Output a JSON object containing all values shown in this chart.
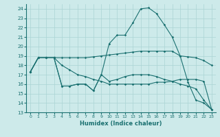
{
  "xlabel": "Humidex (Indice chaleur)",
  "bg_color": "#cdeaea",
  "grid_color": "#aad4d4",
  "line_color": "#1a7070",
  "xlim": [
    -0.5,
    23.5
  ],
  "ylim": [
    13,
    24.5
  ],
  "yticks": [
    13,
    14,
    15,
    16,
    17,
    18,
    19,
    20,
    21,
    22,
    23,
    24
  ],
  "xticks": [
    0,
    1,
    2,
    3,
    4,
    5,
    6,
    7,
    8,
    9,
    10,
    11,
    12,
    13,
    14,
    15,
    16,
    17,
    18,
    19,
    20,
    21,
    22,
    23
  ],
  "line1_x": [
    0,
    1,
    2,
    3,
    4,
    5,
    6,
    7,
    8,
    9,
    10,
    11,
    12,
    13,
    14,
    15,
    16,
    17,
    18,
    19,
    20,
    21,
    22,
    23
  ],
  "line1_y": [
    17.3,
    18.8,
    18.8,
    18.8,
    18.8,
    18.8,
    18.8,
    18.8,
    18.9,
    19.0,
    19.1,
    19.2,
    19.3,
    19.4,
    19.5,
    19.5,
    19.5,
    19.5,
    19.5,
    19.0,
    18.9,
    18.8,
    18.5,
    18.0
  ],
  "line2_x": [
    0,
    1,
    2,
    3,
    4,
    5,
    6,
    7,
    8,
    9,
    10,
    11,
    12,
    13,
    14,
    15,
    16,
    17,
    18,
    19,
    20,
    21,
    22,
    23
  ],
  "line2_y": [
    17.3,
    18.8,
    18.8,
    18.8,
    18.0,
    17.5,
    17.0,
    16.8,
    16.5,
    16.3,
    16.0,
    16.0,
    16.0,
    16.0,
    16.0,
    16.0,
    16.2,
    16.2,
    16.3,
    16.5,
    16.5,
    16.5,
    16.3,
    13.3
  ],
  "line3_x": [
    0,
    1,
    2,
    3,
    4,
    5,
    6,
    7,
    8,
    9,
    10,
    11,
    12,
    13,
    14,
    15,
    16,
    17,
    18,
    19,
    20,
    21,
    22,
    23
  ],
  "line3_y": [
    17.3,
    18.8,
    18.8,
    18.8,
    15.8,
    15.8,
    16.0,
    16.0,
    15.3,
    17.0,
    16.3,
    16.5,
    16.8,
    17.0,
    17.0,
    17.0,
    16.8,
    16.5,
    16.3,
    16.0,
    15.8,
    15.5,
    14.3,
    13.3
  ],
  "line4_x": [
    0,
    1,
    2,
    3,
    4,
    5,
    6,
    7,
    8,
    9,
    10,
    11,
    12,
    13,
    14,
    15,
    16,
    17,
    18,
    19,
    20,
    21,
    22,
    23
  ],
  "line4_y": [
    17.3,
    18.8,
    18.8,
    18.8,
    15.8,
    15.8,
    16.0,
    16.0,
    15.3,
    17.0,
    20.3,
    21.2,
    21.2,
    22.5,
    24.0,
    24.1,
    23.5,
    22.3,
    21.0,
    19.0,
    16.2,
    14.3,
    14.0,
    13.3
  ]
}
